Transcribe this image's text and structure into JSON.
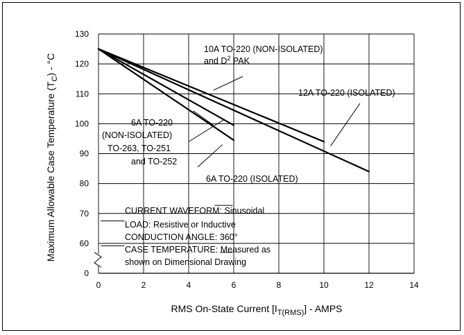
{
  "chart_data": {
    "type": "line",
    "xlabel": "RMS On-State Current [I",
    "xlabel_sub": "T(RMS)",
    "xlabel_tail": "] - AMPS",
    "ylabel_main": "Maximum Allowable Case Temperature (T",
    "ylabel_sub": "C",
    "ylabel_tail": ") - °C",
    "xlim": [
      0,
      14
    ],
    "ylim_display": [
      50,
      130
    ],
    "x_ticks": [
      "0",
      "2",
      "4",
      "6",
      "8",
      "10",
      "12",
      "14"
    ],
    "y_ticks": [
      "0",
      "60",
      "70",
      "80",
      "90",
      "100",
      "110",
      "120",
      "130"
    ],
    "axis_break": true,
    "grid": true,
    "series": [
      {
        "name": "10A TO-220 (NON-ISOLATED) and D2 PAK",
        "x": [
          0,
          10
        ],
        "y": [
          125,
          94
        ]
      },
      {
        "name": "12A TO-220 (ISOLATED)",
        "x": [
          0,
          12
        ],
        "y": [
          125,
          84
        ]
      },
      {
        "name": "6A TO-220 (NON-ISOLATED) TO-263, TO-251 and TO-252",
        "x": [
          0,
          6
        ],
        "y": [
          125,
          99.5
        ]
      },
      {
        "name": "6A TO-220 (ISOLATED)",
        "x": [
          0,
          6
        ],
        "y": [
          125,
          94.5
        ]
      }
    ],
    "annotations": {
      "a10": {
        "line1": "10A TO-220 (NON-ISOLATED)",
        "line2a": "and D",
        "line2sup": "2",
        "line2b": " PAK"
      },
      "a12": {
        "line1": "12A TO-220 (ISOLATED)"
      },
      "a6n": {
        "line1": "6A TO-220",
        "line2": "(NON-ISOLATED)",
        "line3": "TO-263, TO-251",
        "line4": "and TO-252"
      },
      "a6i": {
        "line1": "6A TO-220 (ISOLATED)"
      },
      "notes": [
        "CURRENT WAVEFORM: Sinusoidal",
        "LOAD: Resistive or Inductive",
        "CONDUCTION ANGLE: 360°",
        "CASE TEMPERATURE: Measured as",
        "shown on Dimensional Drawing"
      ]
    }
  }
}
